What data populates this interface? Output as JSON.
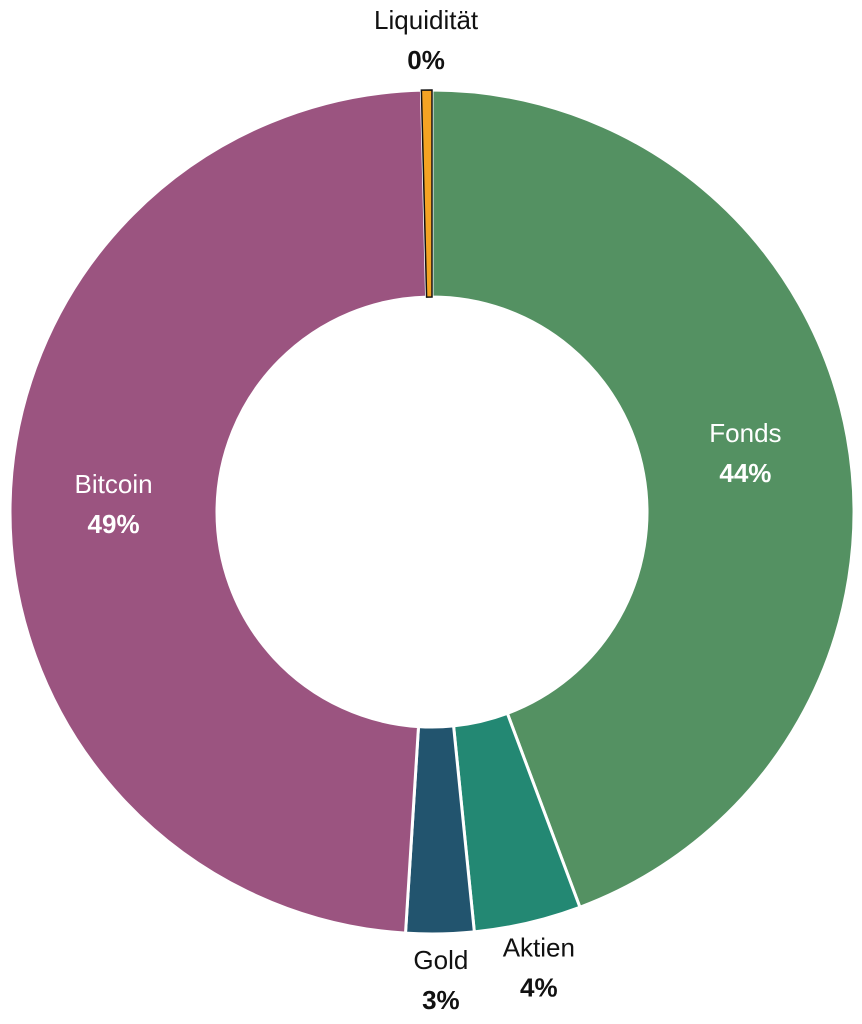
{
  "chart_data": {
    "type": "donut",
    "categories": [
      "Fonds",
      "Aktien",
      "Gold",
      "Bitcoin",
      "Liquidität"
    ],
    "values": [
      44.3,
      4.1,
      2.6,
      48.6,
      0.4
    ],
    "value_labels": [
      "44%",
      "4%",
      "3%",
      "49%",
      "0%"
    ],
    "colors": [
      "#549162",
      "#238873",
      "#22546e",
      "#9b5480",
      "#f4a323"
    ]
  }
}
